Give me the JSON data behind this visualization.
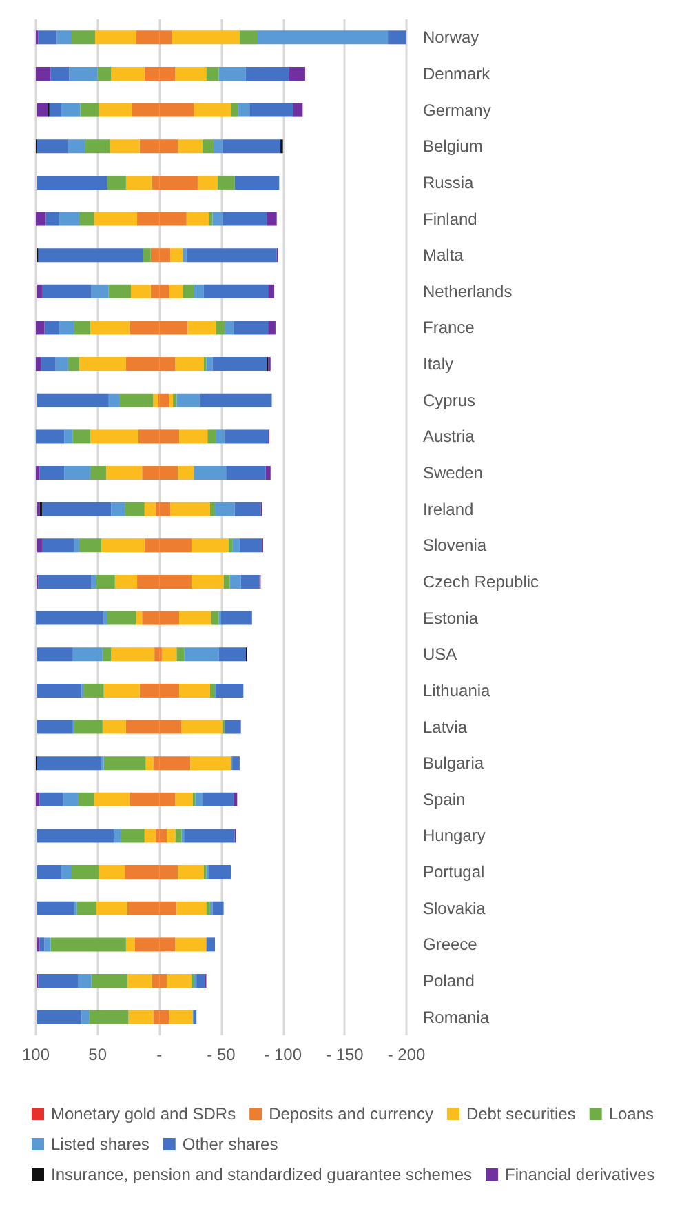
{
  "chart_data": {
    "type": "bar",
    "stacked": true,
    "orientation": "horizontal",
    "categories": [
      "Norway",
      "Denmark",
      "Germany",
      "Belgium",
      "Russia",
      "Finland",
      "Malta",
      "Netherlands",
      "France",
      "Italy",
      "Cyprus",
      "Austria",
      "Sweden",
      "Ireland",
      "Slovenia",
      "Czech Republic",
      "Estonia",
      "USA",
      "Lithuania",
      "Latvia",
      "Bulgaria",
      "Spain",
      "Hungary",
      "Portugal",
      "Slovakia",
      "Greece",
      "Poland",
      "Romania"
    ],
    "series": [
      {
        "name": "Monetary gold and SDRs",
        "color": "#e8312a",
        "values": [
          0,
          0,
          0,
          0,
          0,
          0,
          0,
          0,
          0,
          0,
          0,
          0,
          0,
          0,
          0,
          0,
          0,
          0,
          0,
          0,
          0,
          0,
          0,
          0,
          0,
          0,
          0,
          0
        ]
      },
      {
        "name": "Deposits and currency",
        "color": "#ed7d31",
        "values": [
          19,
          12,
          22,
          16,
          6,
          18,
          7,
          7,
          24,
          27,
          1,
          17,
          14,
          3,
          12,
          18,
          14,
          4,
          16,
          27,
          5,
          24,
          3,
          28,
          26,
          20,
          6,
          5
        ]
      },
      {
        "color": "#ed7d31",
        "values": [
          -10,
          -13,
          -28,
          -15,
          -31,
          -22,
          -9,
          -8,
          -23,
          -13,
          -8,
          -16,
          -15,
          -9,
          -26,
          -26,
          -16,
          -2,
          -16,
          -18,
          -25,
          -13,
          -6,
          -15,
          -14,
          -13,
          -6,
          -8
        ]
      },
      {
        "name": "Debt securities",
        "color": "#fbbd1e",
        "values": [
          33,
          27,
          27,
          24,
          21,
          35,
          0,
          16,
          32,
          38,
          4,
          39,
          29,
          9,
          35,
          18,
          5,
          35,
          29,
          19,
          6,
          29,
          9,
          21,
          25,
          7,
          20,
          20
        ]
      },
      {
        "color": "#fbbd1e",
        "values": [
          -55,
          -25,
          -30,
          -20,
          -16,
          -18,
          -10,
          -11,
          -23,
          -23,
          -3,
          -23,
          -13,
          -32,
          -30,
          -26,
          -26,
          -12,
          -25,
          -33,
          -33,
          -14,
          -7,
          -21,
          -24,
          -25,
          -20,
          -19
        ]
      },
      {
        "name": "Loans",
        "color": "#70ad47",
        "values": [
          19,
          11,
          15,
          20,
          15,
          12,
          6,
          18,
          13,
          9,
          27,
          14,
          13,
          16,
          18,
          15,
          23,
          7,
          16,
          23,
          34,
          13,
          19,
          22,
          16,
          61,
          29,
          32
        ]
      },
      {
        "color": "#70ad47",
        "values": [
          -14,
          -10,
          -6,
          -9,
          -14,
          -3,
          0,
          -9,
          -7,
          -2,
          -3,
          -7,
          0,
          -4,
          -3,
          -5,
          -6,
          -6,
          -4,
          -2,
          0,
          -2,
          -5,
          -2,
          -3,
          0,
          -2,
          0
        ]
      },
      {
        "name": "Listed shares",
        "color": "#5b9bd5",
        "values": [
          12,
          23,
          15,
          14,
          0,
          16,
          0,
          14,
          12,
          10,
          9,
          7,
          21,
          11,
          4,
          4,
          3,
          24,
          2,
          1,
          2,
          12,
          6,
          8,
          2,
          5,
          11,
          6
        ]
      },
      {
        "color": "#5b9bd5",
        "values": [
          -106,
          -22,
          -9,
          -7,
          0,
          -8,
          -3,
          -8,
          -7,
          -5,
          -19,
          -7,
          -26,
          -16,
          -6,
          -9,
          -2,
          -28,
          -1,
          0,
          -1,
          -6,
          -2,
          -2,
          -2,
          0,
          -2,
          -1
        ]
      },
      {
        "name": "Other shares",
        "color": "#4472c4",
        "values": [
          15,
          15,
          10,
          25,
          57,
          11,
          85,
          40,
          12,
          12,
          58,
          23,
          20,
          56,
          26,
          43,
          55,
          29,
          36,
          29,
          52,
          19,
          62,
          20,
          30,
          4,
          32,
          36
        ]
      },
      {
        "color": "#4472c4",
        "values": [
          -15,
          -35,
          -35,
          -47,
          -36,
          -36,
          -73,
          -52,
          -28,
          -44,
          -58,
          -35,
          -32,
          -21,
          -18,
          -15,
          -25,
          -22,
          -22,
          -13,
          -6,
          -25,
          -41,
          -18,
          -9,
          -7,
          -7,
          -2
        ]
      },
      {
        "name": "Insurance, pension and standardized guarantee schemes",
        "color": "#111111",
        "values": [
          0,
          0,
          1,
          2,
          0,
          0,
          1,
          0,
          0,
          0,
          0,
          0,
          0,
          2,
          0,
          0,
          0,
          0,
          0,
          0,
          1,
          0,
          0,
          0,
          0,
          0,
          0,
          0
        ]
      },
      {
        "color": "#111111",
        "values": [
          0,
          0,
          0,
          -2,
          0,
          0,
          0,
          0,
          0,
          -1,
          0,
          0,
          0,
          0,
          0,
          0,
          0,
          -1,
          0,
          0,
          0,
          0,
          0,
          0,
          0,
          0,
          0,
          0
        ]
      },
      {
        "name": "Financial derivatives",
        "color": "#7030a0",
        "values": [
          2,
          12,
          9,
          0,
          0,
          8,
          0,
          4,
          7,
          4,
          0,
          0,
          3,
          2,
          4,
          1,
          0,
          0,
          0,
          0,
          0,
          3,
          0,
          0,
          0,
          2,
          1,
          0
        ]
      },
      {
        "color": "#7030a0",
        "values": [
          0,
          -13,
          -8,
          0,
          0,
          -8,
          -1,
          -5,
          -6,
          -2,
          0,
          -1,
          -4,
          -1,
          -1,
          -1,
          0,
          0,
          0,
          0,
          0,
          -3,
          -1,
          0,
          0,
          0,
          -1,
          0
        ]
      }
    ],
    "xlim": [
      100,
      -200
    ],
    "xticks": [
      100,
      50,
      {
        "value": 0,
        "label": "-"
      },
      {
        "value": -50,
        "label": "- 50"
      },
      {
        "value": -100,
        "label": "- 100"
      },
      {
        "value": -150,
        "label": "- 150"
      },
      {
        "value": -200,
        "label": "- 200"
      }
    ],
    "grid": "x",
    "legend": "bottom"
  }
}
